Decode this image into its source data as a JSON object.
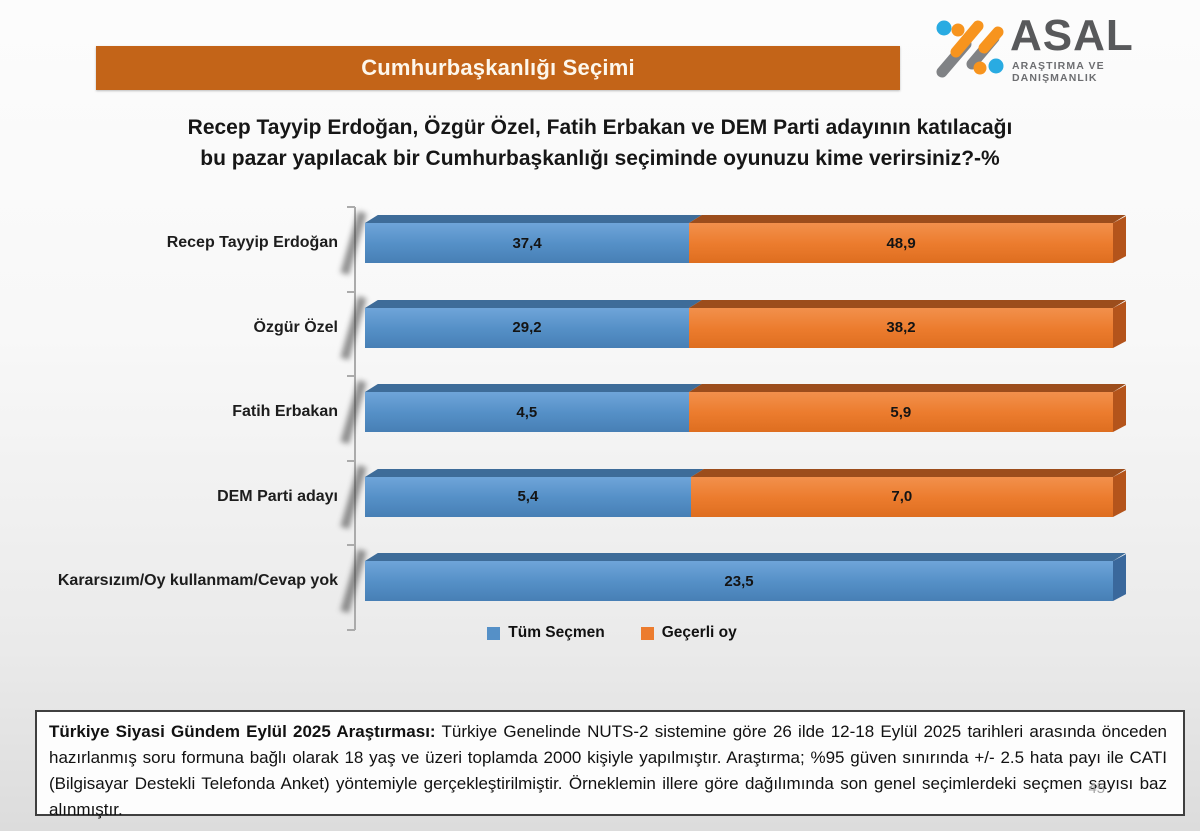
{
  "banner": {
    "title": "Cumhurbaşkanlığı Seçimi",
    "bg_color": "#C36418"
  },
  "logo": {
    "name": "ASAL",
    "subtitle": "ARAŞTIRMA VE DANIŞMANLIK",
    "colors": {
      "gray": "#808285",
      "orange": "#F7941E",
      "blue": "#29ABE2",
      "text": "#58595B"
    }
  },
  "question": {
    "line1": "Recep Tayyip Erdoğan, Özgür Özel, Fatih Erbakan ve DEM Parti adayının katılacağı",
    "line2": "bu pazar yapılacak bir Cumhurbaşkanlığı seçiminde oyunuzu kime verirsiniz?-%"
  },
  "chart_data": {
    "type": "bar",
    "orientation": "horizontal",
    "stacked": true,
    "note": "each row is scaled to full axis width (values normalized per row)",
    "categories": [
      "Recep Tayyip Erdoğan",
      "Özgür Özel",
      "Fatih Erbakan",
      "DEM Parti adayı",
      "Kararsızım/Oy kullanmam/Cevap yok"
    ],
    "series": [
      {
        "name": "Tüm Seçmen",
        "values": [
          37.4,
          29.2,
          4.5,
          5.4,
          23.5
        ],
        "labels": [
          "37,4",
          "29,2",
          "4,5",
          "5,4",
          "23,5"
        ],
        "color": "#5590C7",
        "color_light": "#6FA5D9",
        "color_dark": "#477FB5",
        "color_bevel": "#3E6C99",
        "color_side": "#3A689C"
      },
      {
        "name": "Geçerli oy",
        "values": [
          48.9,
          38.2,
          5.9,
          7.0,
          null
        ],
        "labels": [
          "48,9",
          "38,2",
          "5,9",
          "7,0",
          null
        ],
        "color": "#EC7C2E",
        "color_light": "#F2904C",
        "color_dark": "#DE6E20",
        "color_bevel": "#9C4D1C",
        "color_side": "#B4541B"
      }
    ],
    "legend": [
      "Tüm Seçmen",
      "Geçerli oy"
    ],
    "legend_position": "bottom",
    "grid": false,
    "decimal_separator": ","
  },
  "footnote": {
    "lead": "Türkiye Siyasi Gündem Eylül 2025 Araştırması:",
    "text": " Türkiye Genelinde  NUTS-2 sistemine göre 26 ilde 12-18 Eylül 2025 tarihleri arasında önceden  hazırlanmış soru formuna bağlı olarak 18 yaş ve üzeri toplamda 2000 kişiyle yapılmıştır. Araştırma; %95 güven sınırında +/- 2.5 hata payı ile CATI (Bilgisayar Destekli Telefonda  Anket) yöntemiyle gerçekleştirilmiştir. Örneklemin illere göre dağılımında son genel seçimlerdeki seçmen sayısı baz alınmıştır.",
    "page_number": "45"
  }
}
